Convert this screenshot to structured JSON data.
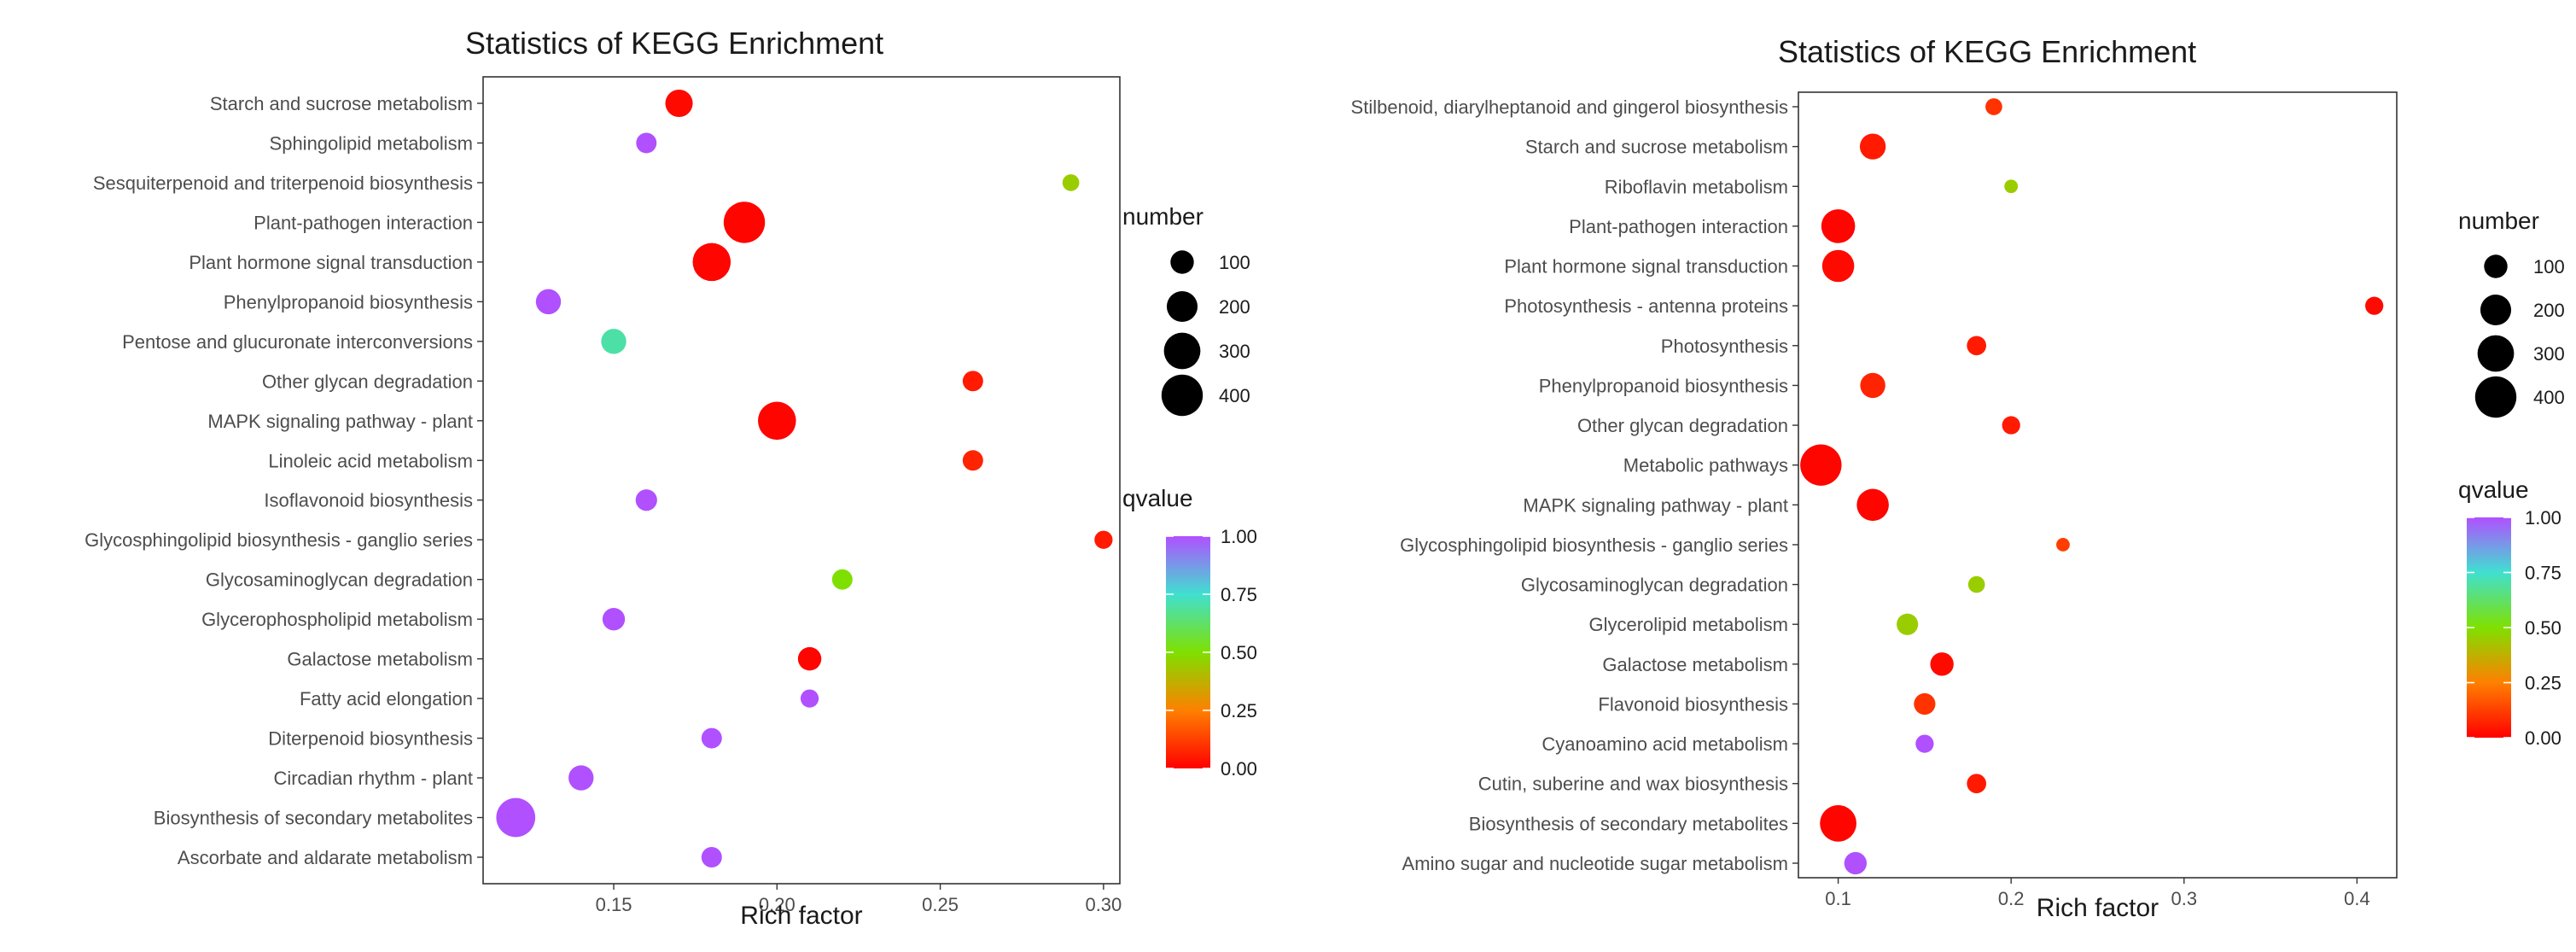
{
  "chart_data": [
    {
      "type": "scatter",
      "title": "Statistics of KEGG Enrichment",
      "xlabel": "Rich factor",
      "ylabel": "",
      "xlim": [
        0.11,
        0.305
      ],
      "xticks": [
        0.15,
        0.2,
        0.25,
        0.3
      ],
      "xtick_labels": [
        "0.15",
        "0.20",
        "0.25",
        "0.30"
      ],
      "grid": false,
      "categories": [
        "Starch and sucrose metabolism",
        "Sphingolipid metabolism",
        "Sesquiterpenoid and triterpenoid biosynthesis",
        "Plant-pathogen interaction",
        "Plant hormone signal transduction",
        "Phenylpropanoid biosynthesis",
        "Pentose and glucuronate interconversions",
        "Other glycan degradation",
        "MAPK signaling pathway - plant",
        "Linoleic acid metabolism",
        "Isoflavonoid biosynthesis",
        "Glycosphingolipid biosynthesis - ganglio series",
        "Glycosaminoglycan degradation",
        "Glycerophospholipid metabolism",
        "Galactose metabolism",
        "Fatty acid elongation",
        "Diterpenoid biosynthesis",
        "Circadian rhythm - plant",
        "Biosynthesis of secondary metabolites",
        "Ascorbate and aldarate metabolism"
      ],
      "rich_factor": [
        0.17,
        0.16,
        0.29,
        0.19,
        0.18,
        0.13,
        0.15,
        0.26,
        0.2,
        0.26,
        0.16,
        0.3,
        0.22,
        0.15,
        0.21,
        0.21,
        0.18,
        0.14,
        0.12,
        0.18
      ],
      "number": [
        150,
        70,
        40,
        400,
        330,
        120,
        120,
        70,
        330,
        70,
        80,
        50,
        70,
        90,
        100,
        50,
        70,
        120,
        350,
        70
      ],
      "qvalue": [
        0.02,
        1.0,
        0.45,
        0.01,
        0.01,
        1.0,
        0.7,
        0.05,
        0.01,
        0.07,
        1.0,
        0.05,
        0.5,
        1.0,
        0.01,
        1.0,
        1.0,
        1.0,
        1.0,
        1.0
      ],
      "legend": {
        "size_title": "number",
        "size_values": [
          100,
          200,
          300,
          400
        ],
        "size_labels": [
          "100",
          "200",
          "300",
          "400"
        ],
        "color_title": "qvalue",
        "color_ticks": [
          1.0,
          0.75,
          0.5,
          0.25,
          0.0
        ],
        "color_labels": [
          "1.00",
          "0.75",
          "0.50",
          "0.25",
          "0.00"
        ],
        "colors": [
          "#FF0000",
          "#FF8000",
          "#7FE000",
          "#40E0D0",
          "#B050FF"
        ],
        "placement": "right"
      }
    },
    {
      "type": "scatter",
      "title": "Statistics of KEGG Enrichment",
      "xlabel": "Rich factor",
      "ylabel": "",
      "xlim": [
        0.077,
        0.423
      ],
      "xticks": [
        0.1,
        0.2,
        0.3,
        0.4
      ],
      "xtick_labels": [
        "0.1",
        "0.2",
        "0.3",
        "0.4"
      ],
      "grid": false,
      "categories": [
        "Stilbenoid, diarylheptanoid and gingerol biosynthesis",
        "Starch and sucrose metabolism",
        "Riboflavin metabolism",
        "Plant-pathogen interaction",
        "Plant hormone signal transduction",
        "Photosynthesis - antenna proteins",
        "Photosynthesis",
        "Phenylpropanoid biosynthesis",
        "Other glycan degradation",
        "Metabolic pathways",
        "MAPK signaling pathway - plant",
        "Glycosphingolipid biosynthesis - ganglio series",
        "Glycosaminoglycan degradation",
        "Glycerolipid metabolism",
        "Galactose metabolism",
        "Flavonoid biosynthesis",
        "Cyanoamino acid metabolism",
        "Cutin, suberine and wax biosynthesis",
        "Biosynthesis of secondary metabolites",
        "Amino sugar and nucleotide sugar metabolism"
      ],
      "rich_factor": [
        0.19,
        0.12,
        0.2,
        0.1,
        0.1,
        0.41,
        0.18,
        0.12,
        0.2,
        0.09,
        0.12,
        0.23,
        0.18,
        0.14,
        0.16,
        0.15,
        0.15,
        0.18,
        0.1,
        0.11
      ],
      "number": [
        40,
        130,
        20,
        250,
        220,
        50,
        60,
        120,
        50,
        400,
        220,
        20,
        40,
        80,
        100,
        80,
        50,
        60,
        300,
        90
      ],
      "qvalue": [
        0.1,
        0.05,
        0.45,
        0.01,
        0.02,
        0.02,
        0.05,
        0.07,
        0.05,
        0.01,
        0.01,
        0.12,
        0.45,
        0.45,
        0.02,
        0.1,
        1.0,
        0.05,
        0.01,
        1.0
      ],
      "legend": {
        "size_title": "number",
        "size_values": [
          100,
          200,
          300,
          400
        ],
        "size_labels": [
          "100",
          "200",
          "300",
          "400"
        ],
        "color_title": "qvalue",
        "color_ticks": [
          1.0,
          0.75,
          0.5,
          0.25,
          0.0
        ],
        "color_labels": [
          "1.00",
          "0.75",
          "0.50",
          "0.25",
          "0.00"
        ],
        "colors": [
          "#FF0000",
          "#FF8000",
          "#7FE000",
          "#40E0D0",
          "#B050FF"
        ],
        "placement": "right"
      }
    }
  ]
}
